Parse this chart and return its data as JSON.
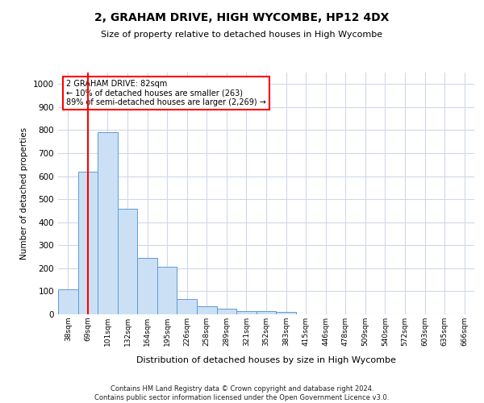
{
  "title": "2, GRAHAM DRIVE, HIGH WYCOMBE, HP12 4DX",
  "subtitle": "Size of property relative to detached houses in High Wycombe",
  "xlabel": "Distribution of detached houses by size in High Wycombe",
  "ylabel": "Number of detached properties",
  "footer_line1": "Contains HM Land Registry data © Crown copyright and database right 2024.",
  "footer_line2": "Contains public sector information licensed under the Open Government Licence v3.0.",
  "annotation_title": "2 GRAHAM DRIVE: 82sqm",
  "annotation_line1": "← 10% of detached houses are smaller (263)",
  "annotation_line2": "89% of semi-detached houses are larger (2,269) →",
  "bar_edge_color": "#5b9bd5",
  "bar_face_color": "#cce0f5",
  "red_line_color": "#ff0000",
  "annotation_box_color": "#ff0000",
  "grid_color": "#d0d8e8",
  "background_color": "#ffffff",
  "categories": [
    "38sqm",
    "69sqm",
    "101sqm",
    "132sqm",
    "164sqm",
    "195sqm",
    "226sqm",
    "258sqm",
    "289sqm",
    "321sqm",
    "352sqm",
    "383sqm",
    "415sqm",
    "446sqm",
    "478sqm",
    "509sqm",
    "540sqm",
    "572sqm",
    "603sqm",
    "635sqm",
    "666sqm"
  ],
  "values": [
    110,
    620,
    790,
    460,
    245,
    205,
    65,
    35,
    25,
    15,
    15,
    10,
    0,
    0,
    0,
    0,
    0,
    0,
    0,
    0,
    0
  ],
  "red_line_x": 1.0,
  "ylim": [
    0,
    1050
  ],
  "yticks": [
    0,
    100,
    200,
    300,
    400,
    500,
    600,
    700,
    800,
    900,
    1000
  ],
  "fig_width": 6.0,
  "fig_height": 5.0,
  "dpi": 100
}
